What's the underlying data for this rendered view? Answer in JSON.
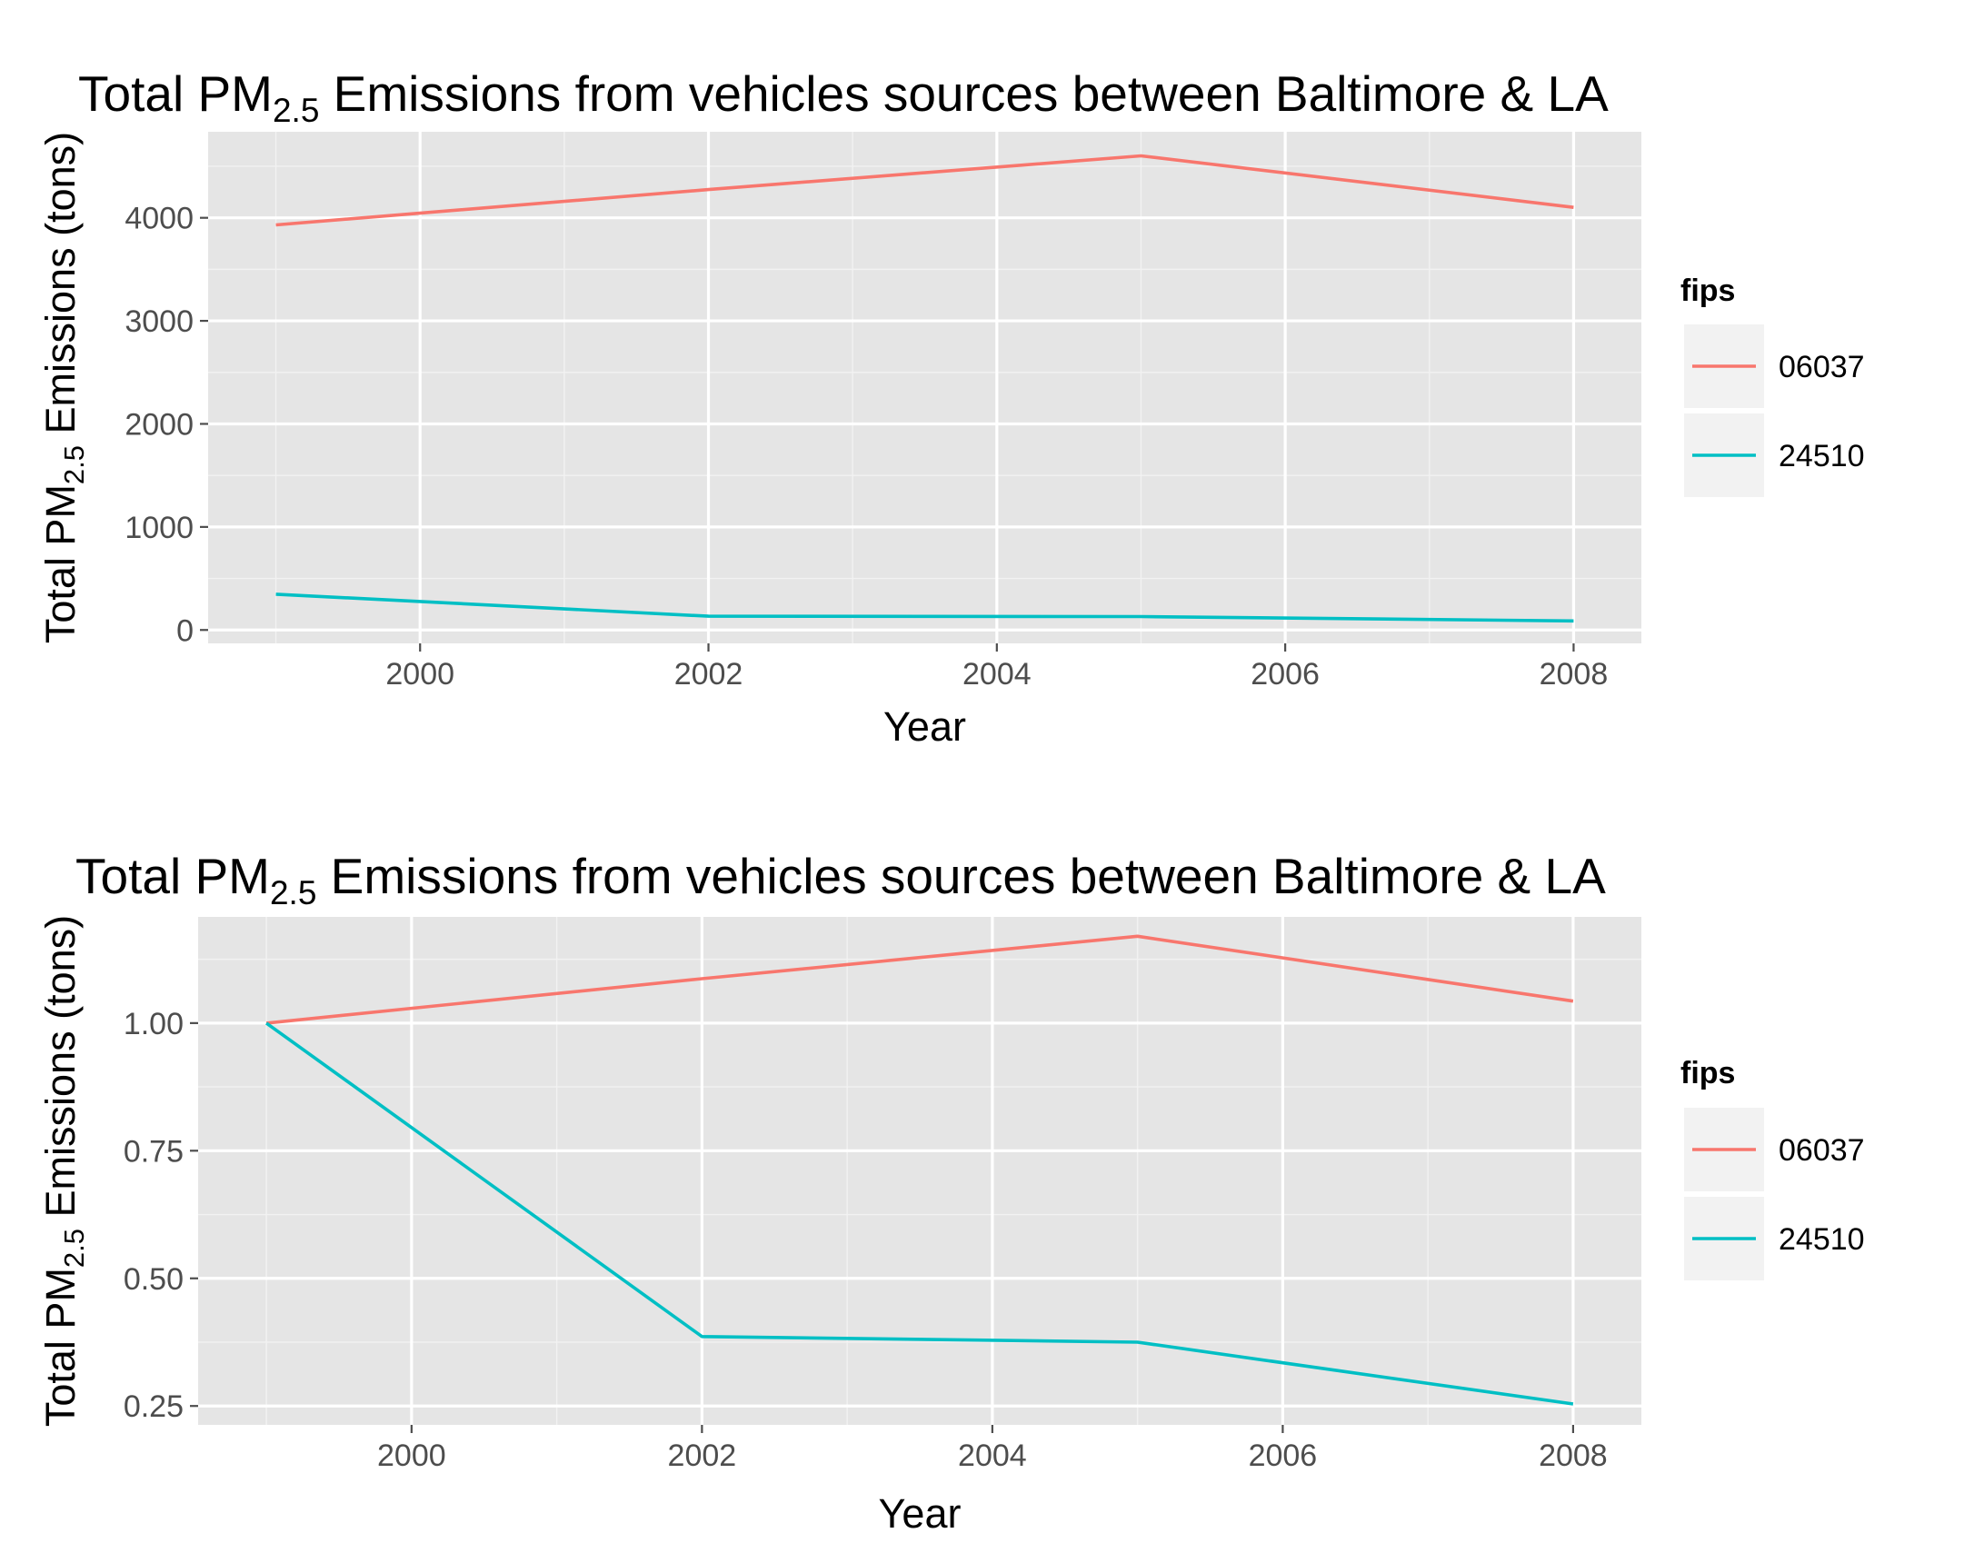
{
  "chart_data": [
    {
      "type": "line",
      "title_main": "Total PM",
      "title_sub": "2.5",
      "title_rest": " Emissions from vehicles sources between Baltimore & LA",
      "xlabel": "Year",
      "ylabel_main": "Total PM",
      "ylabel_sub": "2.5",
      "ylabel_rest": " Emissions (tons)",
      "xlim": [
        1998.53,
        2008.47
      ],
      "ylim": [
        -130,
        4835
      ],
      "x_ticks": [
        2000,
        2002,
        2004,
        2006,
        2008
      ],
      "x_tick_labels": [
        "2000",
        "2002",
        "2004",
        "2006",
        "2008"
      ],
      "y_ticks": [
        0,
        1000,
        2000,
        3000,
        4000
      ],
      "y_tick_labels": [
        "0",
        "1000",
        "2000",
        "3000",
        "4000"
      ],
      "grid": true,
      "legend_title": "fips",
      "legend_position": "right",
      "series": [
        {
          "name": "06037",
          "color": "#f8766d",
          "x": [
            1999,
            2002,
            2005,
            2008
          ],
          "y": [
            3931,
            4274,
            4601,
            4101
          ]
        },
        {
          "name": "24510",
          "color": "#00bfc4",
          "x": [
            1999,
            2002,
            2005,
            2008
          ],
          "y": [
            347,
            134,
            130,
            88
          ]
        }
      ]
    },
    {
      "type": "line",
      "title_main": "Total PM",
      "title_sub": "2.5",
      "title_rest": " Emissions from vehicles sources between Baltimore & LA",
      "xlabel": "Year",
      "ylabel_main": "Total PM",
      "ylabel_sub": "2.5",
      "ylabel_rest": " Emissions (tons)",
      "xlim": [
        1998.53,
        2008.47
      ],
      "ylim": [
        0.213,
        1.208
      ],
      "x_ticks": [
        2000,
        2002,
        2004,
        2006,
        2008
      ],
      "x_tick_labels": [
        "2000",
        "2002",
        "2004",
        "2006",
        "2008"
      ],
      "y_ticks": [
        0.25,
        0.5,
        0.75,
        1.0
      ],
      "y_tick_labels": [
        "0.25",
        "0.50",
        "0.75",
        "1.00"
      ],
      "grid": true,
      "legend_title": "fips",
      "legend_position": "right",
      "series": [
        {
          "name": "06037",
          "color": "#f8766d",
          "x": [
            1999,
            2002,
            2005,
            2008
          ],
          "y": [
            1.0,
            1.087,
            1.17,
            1.043
          ]
        },
        {
          "name": "24510",
          "color": "#00bfc4",
          "x": [
            1999,
            2002,
            2005,
            2008
          ],
          "y": [
            1.0,
            0.386,
            0.375,
            0.254
          ]
        }
      ]
    }
  ]
}
